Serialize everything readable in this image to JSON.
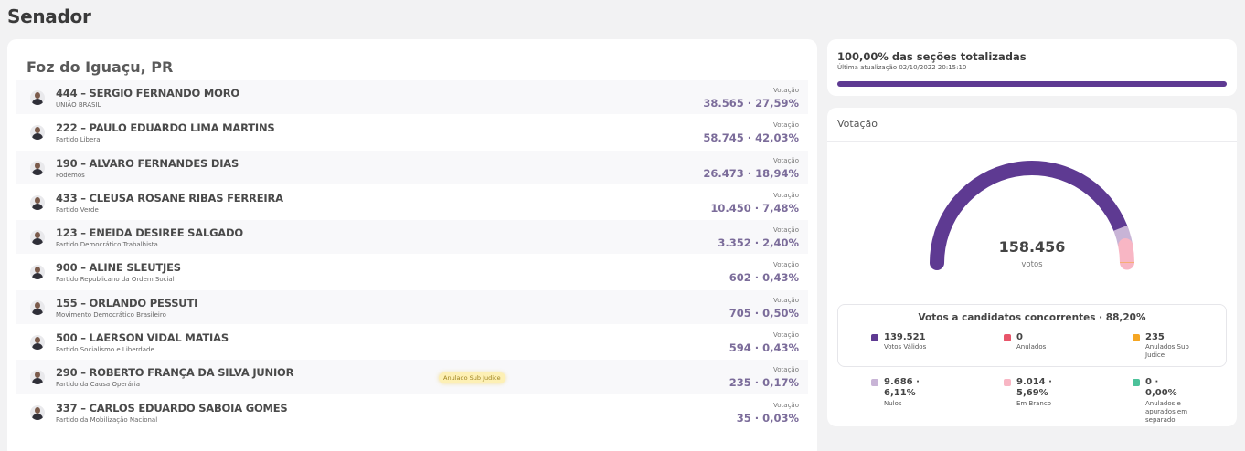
{
  "page_title": "Senador",
  "city": "Foz do Iguaçu, PR",
  "candidates": [
    {
      "title": "444 – SERGIO FERNANDO MORO",
      "party": "UNIÃO BRASIL",
      "vot_label": "Votação",
      "votes": "38.565 · 27,59%",
      "badge": ""
    },
    {
      "title": "222 – PAULO EDUARDO LIMA MARTINS",
      "party": "Partido Liberal",
      "vot_label": "Votação",
      "votes": "58.745 · 42,03%",
      "badge": ""
    },
    {
      "title": "190 – ALVARO FERNANDES DIAS",
      "party": "Podemos",
      "vot_label": "Votação",
      "votes": "26.473 · 18,94%",
      "badge": ""
    },
    {
      "title": "433 – CLEUSA ROSANE RIBAS FERREIRA",
      "party": "Partido Verde",
      "vot_label": "Votação",
      "votes": "10.450 · 7,48%",
      "badge": ""
    },
    {
      "title": "123 – ENEIDA DESIREE SALGADO",
      "party": "Partido Democrático Trabalhista",
      "vot_label": "Votação",
      "votes": "3.352 · 2,40%",
      "badge": ""
    },
    {
      "title": "900 – ALINE SLEUTJES",
      "party": "Partido Republicano da Ordem Social",
      "vot_label": "Votação",
      "votes": "602 · 0,43%",
      "badge": ""
    },
    {
      "title": "155 – ORLANDO PESSUTI",
      "party": "Movimento Democrático Brasileiro",
      "vot_label": "Votação",
      "votes": "705 · 0,50%",
      "badge": ""
    },
    {
      "title": "500 – LAERSON VIDAL MATIAS",
      "party": "Partido Socialismo e Liberdade",
      "vot_label": "Votação",
      "votes": "594 · 0,43%",
      "badge": ""
    },
    {
      "title": "290 – ROBERTO FRANÇA DA SILVA JUNIOR",
      "party": "Partido da Causa Operária",
      "vot_label": "Votação",
      "votes": "235 · 0,17%",
      "badge": "Anulado Sub Judice"
    },
    {
      "title": "337 – CARLOS EDUARDO SABOIA GOMES",
      "party": "Partido da Mobilização Nacional",
      "vot_label": "Votação",
      "votes": "35 · 0,03%",
      "badge": ""
    }
  ],
  "progress": {
    "title": "100,00% das seções totalizadas",
    "updated": "Última atualização 02/10/2022 20:15:10",
    "fraction": 1.0,
    "color": "#5e3a92"
  },
  "votacao": {
    "title": "Votação",
    "total": "158.456",
    "unit": "votos",
    "gauge_segments": [
      {
        "name": "Votos Válidos",
        "value": 139521,
        "color": "#5e3a92"
      },
      {
        "name": "Nulos",
        "value": 9686,
        "color": "#c8b4d6"
      },
      {
        "name": "Em Branco",
        "value": 9014,
        "color": "#f8b6c4"
      },
      {
        "name": "Anulados Sub Judice",
        "value": 235,
        "color": "#f5a623"
      }
    ],
    "legend_title": "Votos a candidatos concorrentes · 88,20%",
    "legend": [
      {
        "value": "139.521",
        "label": "Votos Válidos",
        "color": "#5e3a92"
      },
      {
        "value": "0",
        "label": "Anulados",
        "color": "#e8556a"
      },
      {
        "value": "235",
        "label": "Anulados Sub Judice",
        "color": "#f5a623"
      },
      {
        "value": "9.686 · 6,11%",
        "label": "Nulos",
        "color": "#c8b4d6"
      },
      {
        "value": "9.014 · 5,69%",
        "label": "Em Branco",
        "color": "#f8b6c4"
      },
      {
        "value": "0 · 0,00%",
        "label": "Anulados e apurados em separado",
        "color": "#4cc29a"
      }
    ]
  }
}
